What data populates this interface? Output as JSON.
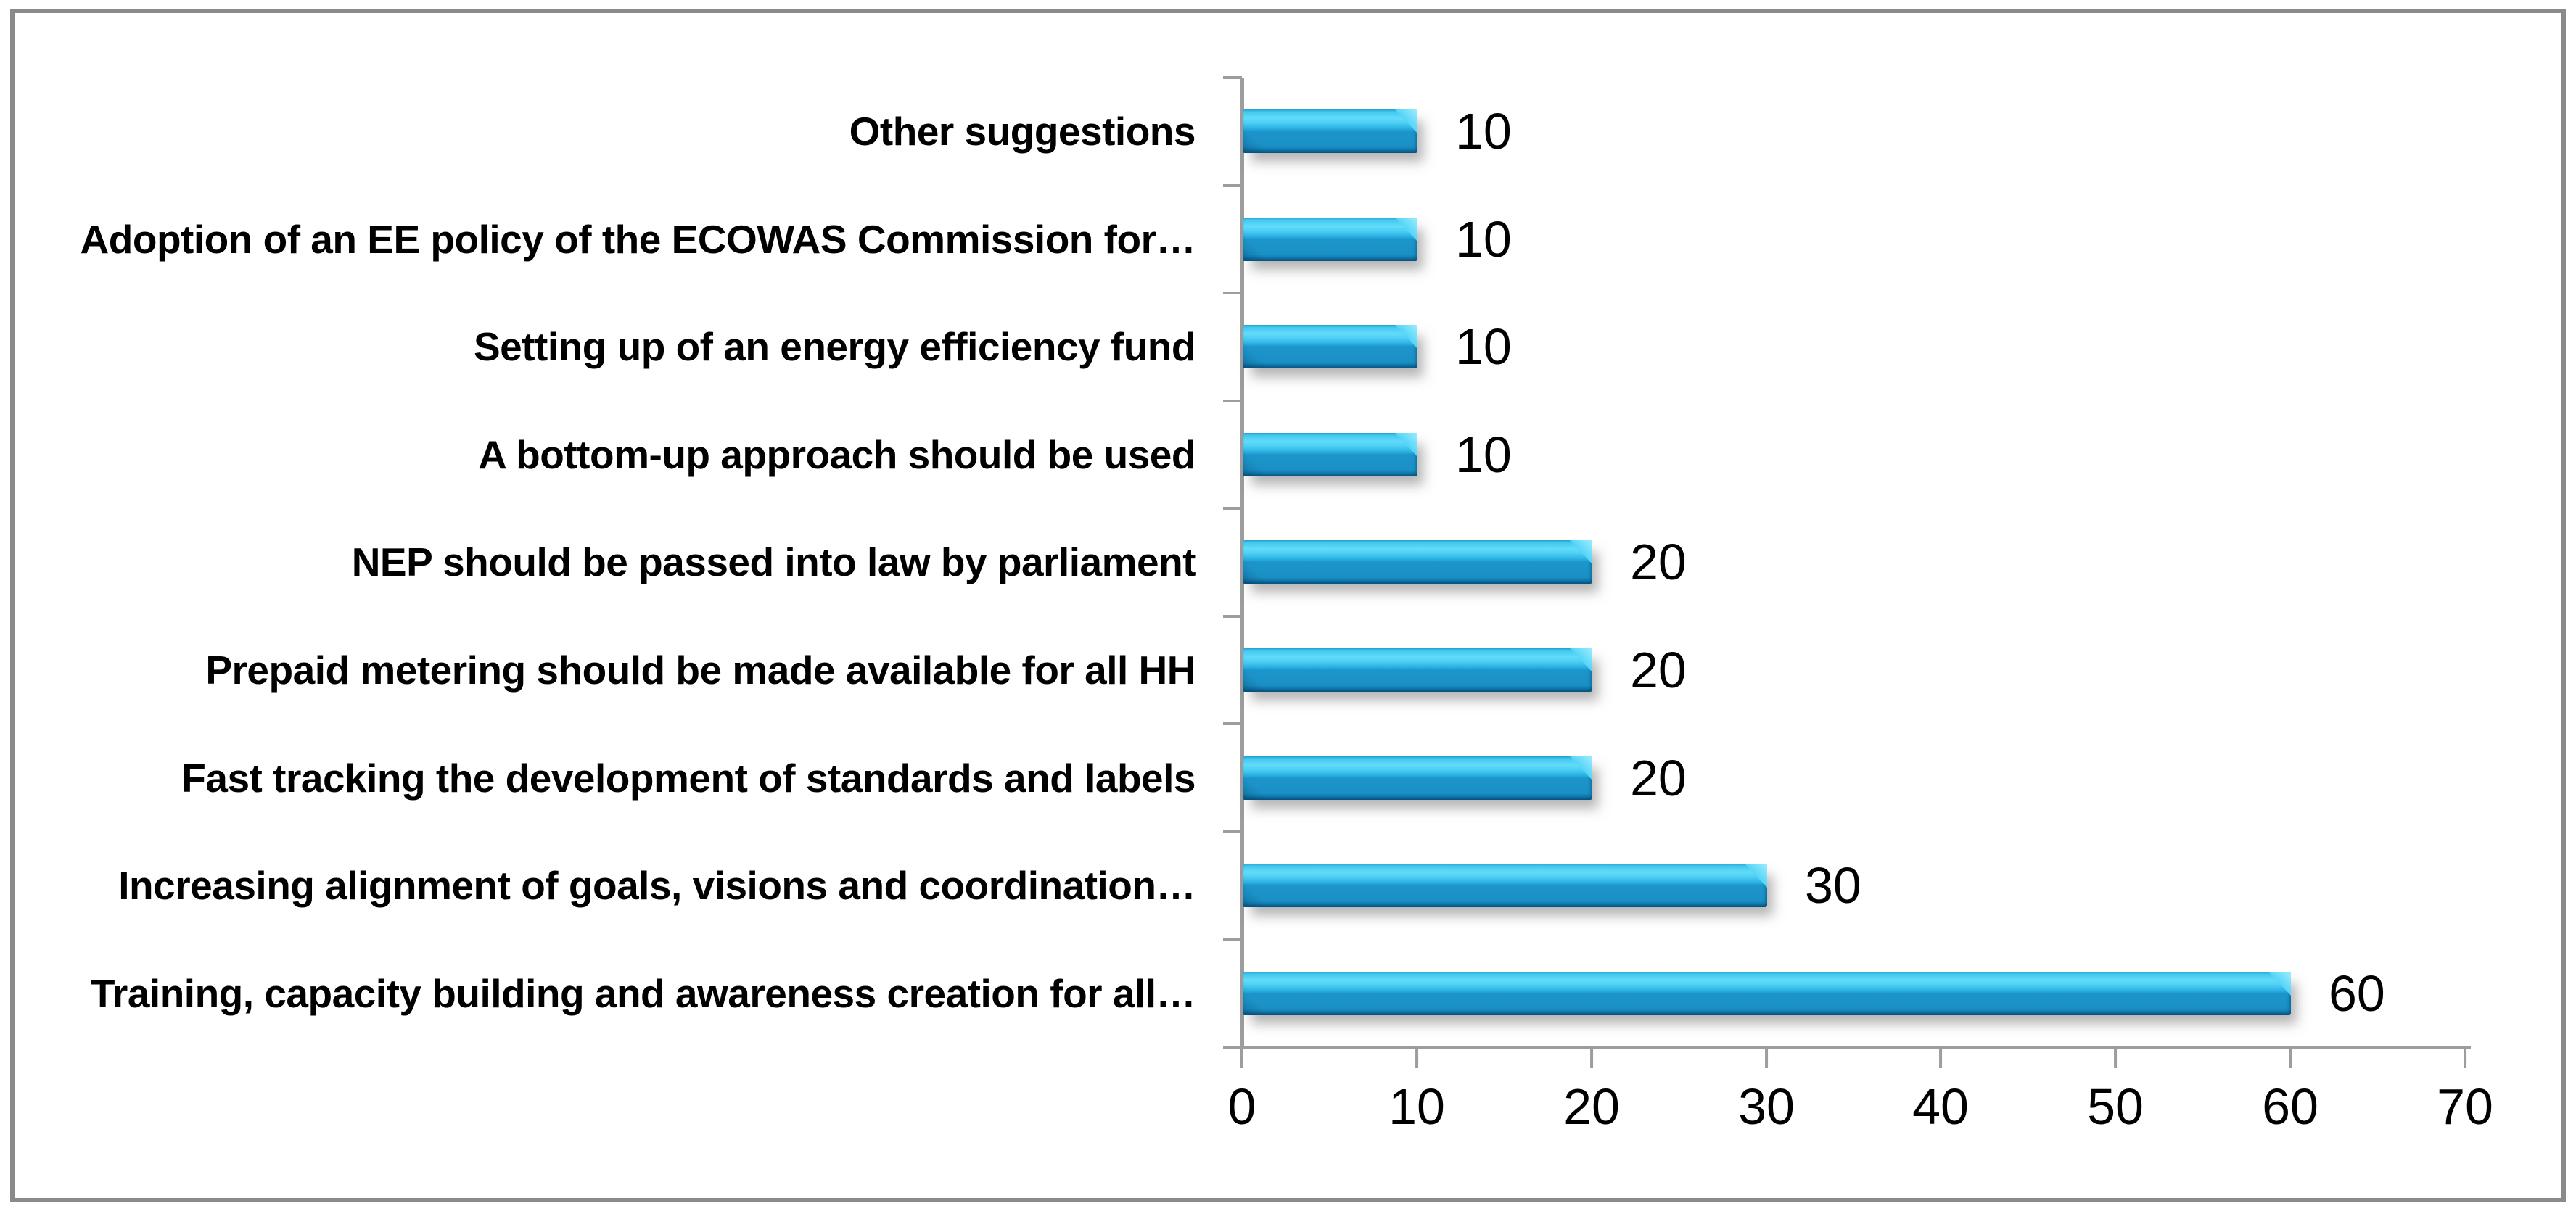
{
  "chart_data": {
    "type": "bar",
    "orientation": "horizontal",
    "title": "",
    "xlabel": "",
    "ylabel": "",
    "grid": false,
    "legend": false,
    "categories": [
      "Other suggestions",
      "Adoption of an EE policy of the ECOWAS Commission for…",
      "Setting up of an energy efficiency fund",
      "A bottom-up approach should be used",
      "NEP should be passed into law by parliament",
      "Prepaid metering should be made available for all HH",
      "Fast tracking the development of standards and labels",
      "Increasing alignment of goals, visions and coordination…",
      "Training, capacity building and awareness creation for all…"
    ],
    "values": [
      10,
      10,
      10,
      10,
      20,
      20,
      20,
      30,
      60
    ],
    "data_labels": [
      "10",
      "10",
      "10",
      "10",
      "20",
      "20",
      "20",
      "30",
      "60"
    ],
    "x_ticks": [
      "0",
      "10",
      "20",
      "30",
      "40",
      "50",
      "60",
      "70"
    ],
    "xlim": [
      0,
      70
    ],
    "colors": {
      "bar_highlight": "#63dbfa",
      "bar_main": "#1b92c7",
      "bar_dark": "#0c6296",
      "axis": "#9d9d9d",
      "frame_border": "#8a8a8a",
      "text": "#000000",
      "background": "#ffffff"
    }
  }
}
